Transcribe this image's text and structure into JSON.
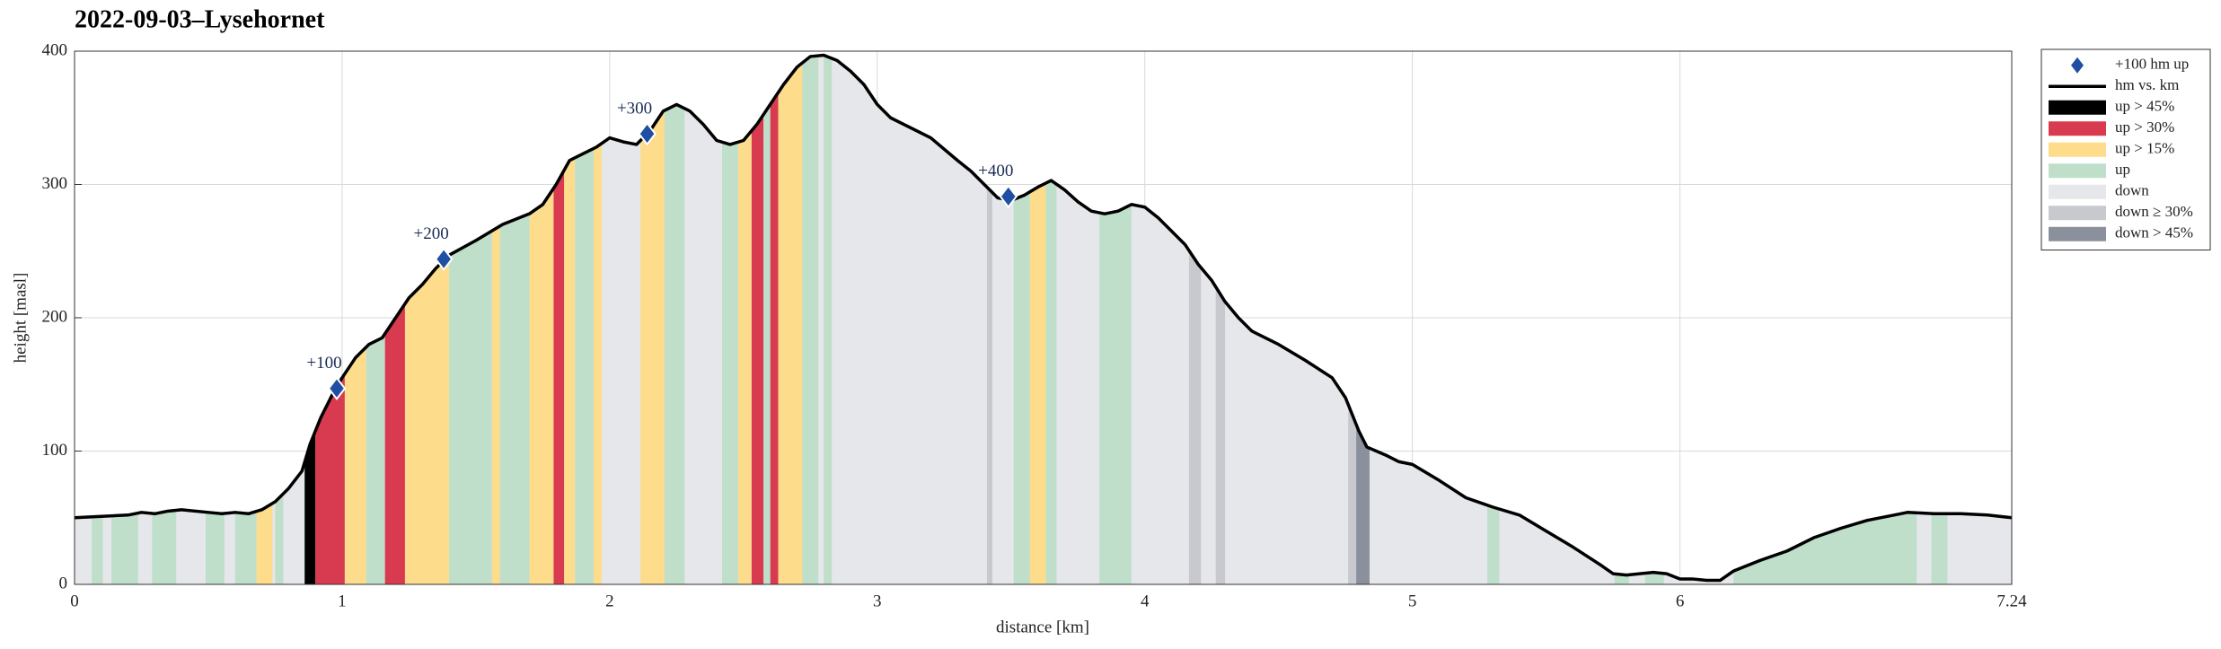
{
  "chart_data": {
    "type": "elevation-profile",
    "title": "2022-09-03–Lysehornet",
    "xlabel": "distance [km]",
    "ylabel": "height [masl]",
    "xlim": [
      0,
      7.24
    ],
    "ylim": [
      0,
      400
    ],
    "xticks": [
      0,
      1,
      2,
      3,
      4,
      5,
      6,
      7.24
    ],
    "yticks": [
      0,
      100,
      200,
      300,
      400
    ],
    "grid": true,
    "legend": "outside right",
    "series": [
      {
        "name": "+100 hm up",
        "kind": "marker",
        "color": "#1f4fa3",
        "x": [
          0.98,
          1.38,
          2.14,
          3.49
        ],
        "values": [
          147,
          244,
          338,
          291
        ],
        "labels": [
          "+100",
          "+200",
          "+300",
          "+400"
        ]
      },
      {
        "name": "hm vs. km",
        "kind": "line",
        "color": "#000000",
        "x": [
          0,
          0.1,
          0.2,
          0.25,
          0.3,
          0.35,
          0.4,
          0.5,
          0.55,
          0.6,
          0.65,
          0.7,
          0.75,
          0.8,
          0.85,
          0.88,
          0.92,
          0.97,
          1.0,
          1.05,
          1.1,
          1.15,
          1.2,
          1.25,
          1.3,
          1.35,
          1.4,
          1.5,
          1.6,
          1.7,
          1.75,
          1.8,
          1.85,
          1.9,
          1.95,
          2.0,
          2.05,
          2.1,
          2.15,
          2.2,
          2.25,
          2.3,
          2.35,
          2.4,
          2.45,
          2.5,
          2.55,
          2.6,
          2.65,
          2.7,
          2.75,
          2.8,
          2.85,
          2.9,
          2.95,
          3.0,
          3.05,
          3.1,
          3.2,
          3.3,
          3.35,
          3.4,
          3.45,
          3.5,
          3.55,
          3.6,
          3.65,
          3.7,
          3.75,
          3.8,
          3.85,
          3.9,
          3.95,
          4.0,
          4.05,
          4.1,
          4.15,
          4.2,
          4.25,
          4.3,
          4.35,
          4.4,
          4.5,
          4.6,
          4.7,
          4.75,
          4.8,
          4.83,
          4.9,
          4.95,
          5.0,
          5.1,
          5.2,
          5.3,
          5.4,
          5.5,
          5.6,
          5.7,
          5.75,
          5.8,
          5.9,
          5.95,
          6.0,
          6.05,
          6.1,
          6.15,
          6.2,
          6.3,
          6.4,
          6.5,
          6.6,
          6.7,
          6.8,
          6.85,
          6.95,
          7.05,
          7.15,
          7.24
        ],
        "values": [
          50,
          51,
          52,
          54,
          53,
          55,
          56,
          54,
          53,
          54,
          53,
          56,
          62,
          72,
          85,
          105,
          125,
          145,
          155,
          170,
          180,
          185,
          200,
          215,
          225,
          237,
          247,
          258,
          270,
          278,
          285,
          300,
          318,
          323,
          328,
          335,
          332,
          330,
          340,
          355,
          360,
          355,
          345,
          333,
          330,
          333,
          345,
          360,
          375,
          388,
          396,
          397,
          393,
          385,
          375,
          360,
          350,
          345,
          335,
          318,
          310,
          300,
          290,
          288,
          292,
          298,
          303,
          296,
          287,
          280,
          278,
          280,
          285,
          283,
          275,
          265,
          255,
          240,
          228,
          212,
          200,
          190,
          180,
          168,
          155,
          140,
          115,
          103,
          97,
          92,
          90,
          78,
          65,
          58,
          52,
          40,
          28,
          15,
          8,
          7,
          9,
          8,
          4,
          4,
          3,
          3,
          10,
          18,
          25,
          35,
          42,
          48,
          52,
          54,
          53,
          53,
          52,
          50
        ]
      },
      {
        "name": "up > 45%",
        "kind": "band",
        "color": "#000000",
        "ranges": [
          [
            0.86,
            0.9
          ]
        ]
      },
      {
        "name": "up > 30%",
        "kind": "band",
        "color": "#d83a50",
        "ranges": [
          [
            0.9,
            1.01
          ],
          [
            1.16,
            1.235
          ],
          [
            1.79,
            1.83
          ],
          [
            2.53,
            2.575
          ],
          [
            2.6,
            2.63
          ]
        ]
      },
      {
        "name": "up > 15%",
        "kind": "band",
        "color": "#fddc8c",
        "ranges": [
          [
            0.68,
            0.74
          ],
          [
            1.01,
            1.09
          ],
          [
            1.235,
            1.4
          ],
          [
            1.56,
            1.59
          ],
          [
            1.7,
            1.79
          ],
          [
            1.83,
            1.87
          ],
          [
            1.94,
            1.97
          ],
          [
            2.115,
            2.205
          ],
          [
            2.48,
            2.53
          ],
          [
            2.63,
            2.72
          ],
          [
            3.57,
            3.63
          ]
        ]
      },
      {
        "name": "up",
        "kind": "band",
        "color": "#bfdfcb",
        "ranges": [
          [
            0.064,
            0.106
          ],
          [
            0.138,
            0.238
          ],
          [
            0.29,
            0.38
          ],
          [
            0.49,
            0.56
          ],
          [
            0.6,
            0.68
          ],
          [
            0.75,
            0.78
          ],
          [
            1.09,
            1.16
          ],
          [
            1.4,
            1.56
          ],
          [
            1.59,
            1.7
          ],
          [
            1.87,
            1.94
          ],
          [
            2.205,
            2.28
          ],
          [
            2.42,
            2.48
          ],
          [
            2.575,
            2.6
          ],
          [
            2.72,
            2.78
          ],
          [
            2.8,
            2.83
          ],
          [
            3.51,
            3.57
          ],
          [
            3.63,
            3.67
          ],
          [
            3.83,
            3.95
          ],
          [
            5.28,
            5.325
          ],
          [
            5.755,
            5.81
          ],
          [
            5.87,
            5.94
          ],
          [
            6.2,
            6.885
          ],
          [
            6.94,
            7.0
          ]
        ]
      },
      {
        "name": "down",
        "kind": "base",
        "color": "#e6e7eb"
      },
      {
        "name": "down ≥ 30%",
        "kind": "band",
        "color": "#c8c9cf",
        "ranges": [
          [
            3.41,
            3.43
          ],
          [
            4.165,
            4.21
          ],
          [
            4.265,
            4.3
          ],
          [
            4.76,
            4.79
          ]
        ]
      },
      {
        "name": "down > 45%",
        "kind": "band",
        "color": "#8a919c",
        "ranges": [
          [
            4.79,
            4.84
          ]
        ]
      }
    ]
  }
}
